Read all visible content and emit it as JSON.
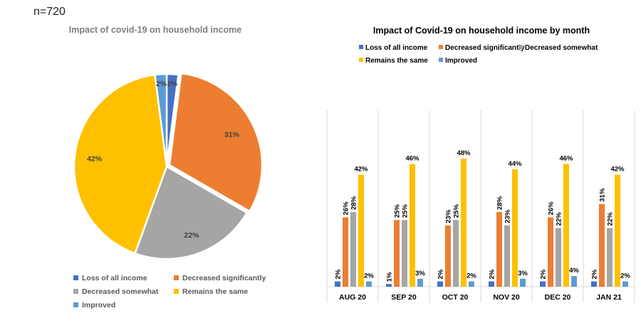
{
  "sample_label": "n=720",
  "chart_data": [
    {
      "type": "pie",
      "title": "Impact of covid-19 on household income",
      "categories": [
        "Loss of all income",
        "Decreased significantly",
        "Decreased somewhat",
        "Remains the same",
        "Improved"
      ],
      "values": [
        2,
        31,
        22,
        42,
        2
      ],
      "labels": [
        "2%",
        "31%",
        "22%",
        "42%",
        "2%"
      ],
      "colors": [
        "#4472C4",
        "#ED7D31",
        "#A5A5A5",
        "#FFC000",
        "#5B9BD5"
      ],
      "legend_position": "bottom"
    },
    {
      "type": "bar",
      "title": "Impact of Covid-19 on household income by month",
      "categories": [
        "AUG 20",
        "SEP 20",
        "OCT 20",
        "NOV 20",
        "DEC 20",
        "JAN 21"
      ],
      "series": [
        {
          "name": "Loss of all income",
          "color": "#4472C4",
          "values": [
            2,
            1,
            2,
            2,
            2,
            2
          ]
        },
        {
          "name": "Decreased significantly",
          "color": "#ED7D31",
          "values": [
            26,
            25,
            23,
            28,
            26,
            31
          ]
        },
        {
          "name": "Decreased somewhat",
          "color": "#A5A5A5",
          "values": [
            28,
            25,
            25,
            23,
            22,
            22
          ]
        },
        {
          "name": "Remains the same",
          "color": "#FFC000",
          "values": [
            42,
            46,
            48,
            44,
            46,
            42
          ]
        },
        {
          "name": "Improved",
          "color": "#5B9BD5",
          "values": [
            2,
            3,
            2,
            3,
            4,
            2
          ]
        }
      ],
      "unit": "%",
      "ylim": [
        0,
        60
      ],
      "legend_position": "top",
      "grid": false
    }
  ]
}
